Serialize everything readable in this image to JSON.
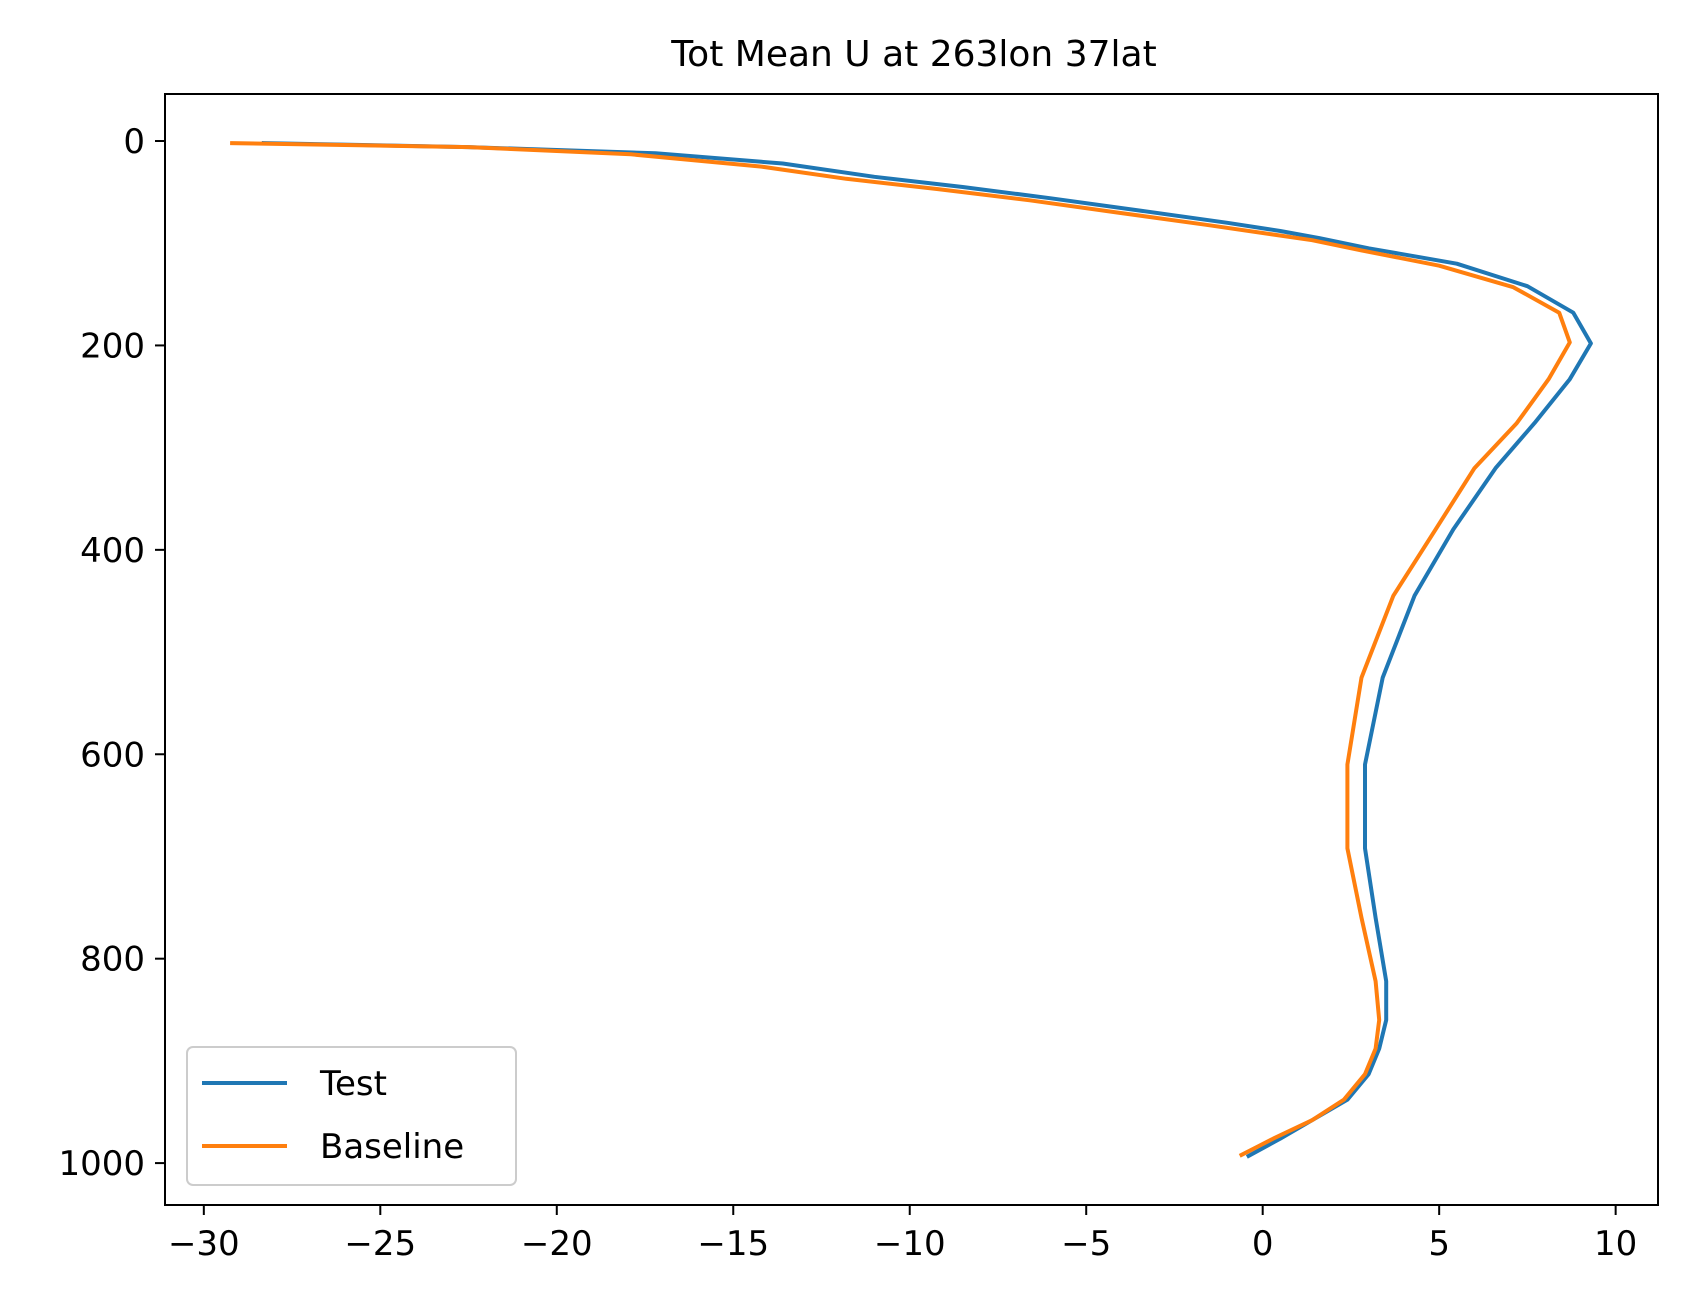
{
  "chart_data": {
    "type": "line",
    "title": "Tot Mean U at 263lon 37lat",
    "xlabel": "",
    "ylabel": "",
    "xlim": [
      -31.1,
      11.2
    ],
    "ylim": [
      1041,
      -46
    ],
    "y_inverted": true,
    "grid": false,
    "legend_position": "bottom-left",
    "xticks": [
      -30,
      -25,
      -20,
      -15,
      -10,
      -5,
      0,
      5,
      10
    ],
    "xtick_labels": [
      "−30",
      "−25",
      "−20",
      "−15",
      "−10",
      "−5",
      "0",
      "5",
      "10"
    ],
    "yticks": [
      0,
      200,
      400,
      600,
      800,
      1000
    ],
    "ytick_labels": [
      "0",
      "200",
      "400",
      "600",
      "800",
      "1000"
    ],
    "series": [
      {
        "name": "Test",
        "color": "#1f77b4",
        "x": [
          -28.3,
          -22.5,
          -17.2,
          -13.6,
          -11.0,
          -8.5,
          -6.0,
          -3.5,
          -1.0,
          0.5,
          1.6,
          3.0,
          5.5,
          7.5,
          8.8,
          9.3,
          8.7,
          7.7,
          6.6,
          5.4,
          4.3,
          3.4,
          2.9,
          2.9,
          3.2,
          3.5,
          3.5,
          3.3,
          3.0,
          2.4,
          1.4,
          0.5,
          -0.4
        ],
        "y": [
          2,
          6,
          12,
          22,
          35,
          45,
          56,
          68,
          80,
          88,
          95,
          105,
          120,
          142,
          168,
          198,
          233,
          276,
          320,
          380,
          445,
          525,
          610,
          692,
          760,
          822,
          860,
          888,
          913,
          938,
          958,
          976,
          993
        ]
      },
      {
        "name": "Baseline",
        "color": "#ff7f0e",
        "x": [
          -29.2,
          -22.5,
          -17.9,
          -14.2,
          -11.8,
          -9.2,
          -6.6,
          -4.1,
          -1.6,
          0.0,
          1.4,
          2.8,
          5.0,
          7.1,
          8.4,
          8.7,
          8.1,
          7.2,
          6.0,
          4.9,
          3.7,
          2.8,
          2.4,
          2.4,
          2.8,
          3.2,
          3.3,
          3.2,
          2.9,
          2.3,
          1.4,
          0.3,
          -0.6
        ],
        "y": [
          2,
          6,
          13,
          25,
          37,
          47,
          58,
          70,
          82,
          90,
          97,
          107,
          122,
          143,
          168,
          197,
          233,
          276,
          320,
          380,
          445,
          525,
          610,
          692,
          760,
          822,
          860,
          888,
          913,
          938,
          958,
          976,
          992
        ]
      }
    ]
  }
}
